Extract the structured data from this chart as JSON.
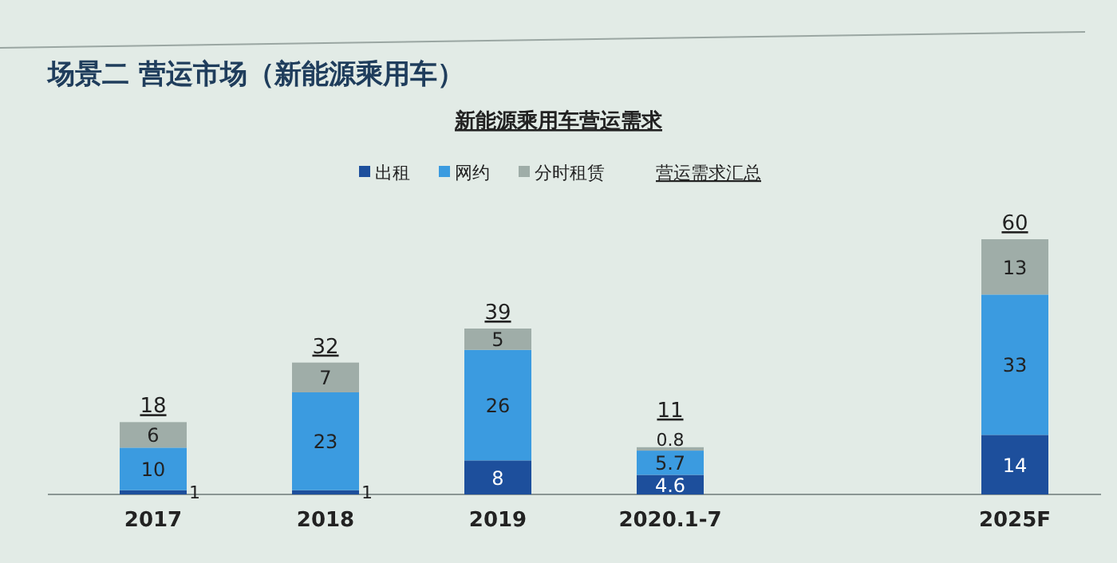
{
  "chart_data": {
    "type": "bar",
    "title": "场景二 营运市场（新能源乘用车）",
    "subtitle": "新能源乘用车营运需求",
    "categories": [
      "2017",
      "2018",
      "2019",
      "2020.1-7",
      null,
      "2025F"
    ],
    "stacked": true,
    "data_labels": true,
    "legend": "top",
    "series": [
      {
        "name": "出租",
        "color": "#1d4f9c",
        "values": [
          1,
          1,
          8,
          4.6,
          null,
          14
        ]
      },
      {
        "name": "网约",
        "color": "#3b9be0",
        "values": [
          10,
          23,
          26,
          5.7,
          null,
          33
        ]
      },
      {
        "name": "分时租赁",
        "color": "#9fada8",
        "values": [
          6,
          7,
          5,
          0.8,
          null,
          13
        ]
      }
    ],
    "totals": [
      "18",
      "32",
      "39",
      "11",
      null,
      "60"
    ],
    "annotations": [
      "营运需求汇总"
    ]
  }
}
